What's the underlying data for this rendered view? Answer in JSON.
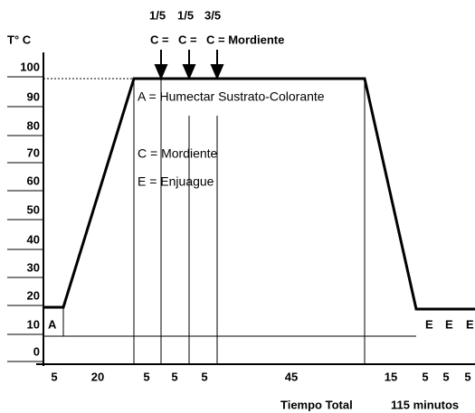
{
  "fractions": [
    "1/5",
    "1/5",
    "3/5"
  ],
  "top_steps": [
    "C =",
    "C =",
    "C = Mordiente"
  ],
  "y_axis_label": "T° C",
  "y_labels": [
    "100",
    "90",
    "80",
    "70",
    "60",
    "50",
    "40",
    "30",
    "20",
    "10",
    "0"
  ],
  "annotations": [
    "A = Humectar Sustrato-Colorante",
    "C = Mordiente",
    "E = Enjuague"
  ],
  "phase_labels": [
    "A",
    "E",
    "E",
    "E"
  ],
  "durations": [
    "5",
    "20",
    "5",
    "5",
    "5",
    "45",
    "15",
    "5",
    "5",
    "5"
  ],
  "footer": {
    "label": "Tiempo Total",
    "total": "115 minutos"
  }
}
